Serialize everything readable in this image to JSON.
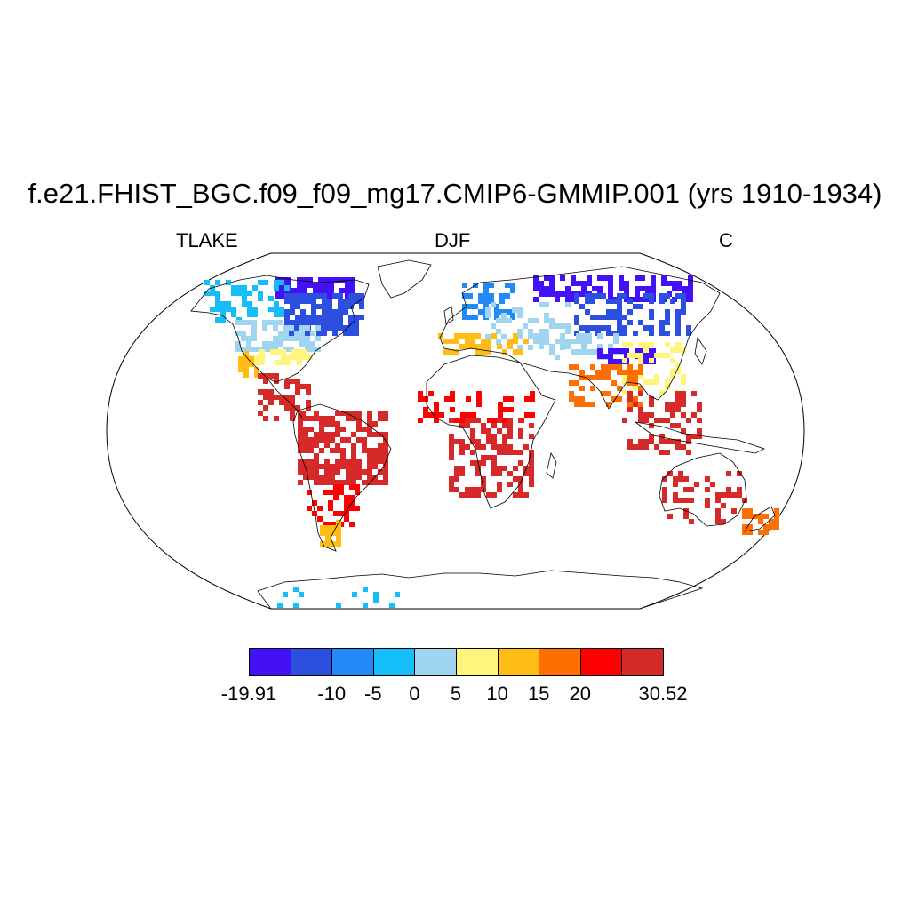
{
  "title": "f.e21.FHIST_BGC.f09_f09_mg17.CMIP6-GMMIP.001 (yrs 1910-1934)",
  "subtitle_left": "TLAKE",
  "subtitle_center": "DJF",
  "subtitle_right": "C",
  "projection": "Robinson",
  "colorbar": {
    "colors": [
      "#4410f5",
      "#2d4fe0",
      "#218af7",
      "#15bef8",
      "#9fd5f0",
      "#fff57a",
      "#ffbd14",
      "#ff6e00",
      "#ff0000",
      "#d62a2a"
    ],
    "labels": [
      "-19.91",
      "-10",
      "-5",
      "0",
      "5",
      "10",
      "15",
      "20",
      "30.52"
    ],
    "label_slots": [
      0,
      2,
      3,
      4,
      5,
      6,
      7,
      8,
      10
    ]
  },
  "regions": [
    {
      "name": "north-canada",
      "color": "#4410f5"
    },
    {
      "name": "canada-shield",
      "color": "#2d4fe0"
    },
    {
      "name": "north-america-cold",
      "color": "#15bef8"
    },
    {
      "name": "north-america-mid",
      "color": "#9fd5f0"
    },
    {
      "name": "us-south",
      "color": "#fff57a"
    },
    {
      "name": "gulf-coast",
      "color": "#ffbd14"
    },
    {
      "name": "central-america",
      "color": "#d62a2a"
    },
    {
      "name": "amazon",
      "color": "#d62a2a"
    },
    {
      "name": "south-america-south",
      "color": "#ff0000"
    },
    {
      "name": "patagonia",
      "color": "#ffbd14"
    },
    {
      "name": "scandinavia",
      "color": "#218af7"
    },
    {
      "name": "europe",
      "color": "#9fd5f0"
    },
    {
      "name": "mediterranean",
      "color": "#ffbd14"
    },
    {
      "name": "siberia",
      "color": "#4410f5"
    },
    {
      "name": "russia",
      "color": "#2d4fe0"
    },
    {
      "name": "central-asia",
      "color": "#9fd5f0"
    },
    {
      "name": "tibet",
      "color": "#4410f5"
    },
    {
      "name": "china-east",
      "color": "#fff57a"
    },
    {
      "name": "india",
      "color": "#ff6e00"
    },
    {
      "name": "southeast-asia",
      "color": "#d62a2a"
    },
    {
      "name": "sahel",
      "color": "#ff0000"
    },
    {
      "name": "central-africa",
      "color": "#d62a2a"
    },
    {
      "name": "australia",
      "color": "#d62a2a"
    },
    {
      "name": "new-zealand",
      "color": "#ff6e00"
    },
    {
      "name": "antarctic-lakes",
      "color": "#15bef8"
    }
  ]
}
